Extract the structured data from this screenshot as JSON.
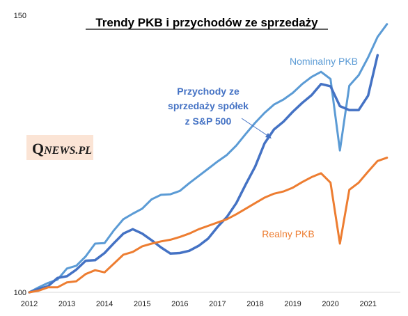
{
  "chart_data": {
    "type": "line",
    "title": "Trendy PKB i przychodów ze sprzedaży",
    "xlabel": "",
    "ylabel": "",
    "ylim": [
      100,
      150
    ],
    "xlim": [
      2012,
      2021.8
    ],
    "y_ticks": [
      100,
      150
    ],
    "x_ticks": [
      2012,
      2013,
      2014,
      2015,
      2016,
      2017,
      2018,
      2019,
      2020,
      2021
    ],
    "grid": false,
    "legend": "none",
    "series": [
      {
        "name": "Nominalny PKB",
        "color": "#5b9bd5",
        "x": [
          2012,
          2012.25,
          2012.5,
          2012.75,
          2013,
          2013.25,
          2013.5,
          2013.75,
          2014,
          2014.25,
          2014.5,
          2014.75,
          2015,
          2015.25,
          2015.5,
          2015.75,
          2016,
          2016.25,
          2016.5,
          2016.75,
          2017,
          2017.25,
          2017.5,
          2017.75,
          2018,
          2018.25,
          2018.5,
          2018.75,
          2019,
          2019.25,
          2019.5,
          2019.75,
          2020,
          2020.25,
          2020.5,
          2020.75,
          2021,
          2021.25,
          2021.5
        ],
        "values": [
          100,
          100.9,
          101.7,
          102.3,
          104.3,
          104.8,
          106.5,
          108.8,
          108.9,
          111.2,
          113.2,
          114.2,
          115.1,
          116.8,
          117.6,
          117.7,
          118.3,
          119.7,
          121.0,
          122.3,
          123.6,
          124.8,
          126.5,
          128.6,
          130.6,
          132.4,
          133.9,
          134.8,
          136.0,
          137.6,
          138.9,
          139.8,
          138.5,
          125.6,
          137.3,
          139.2,
          142.4,
          146.1,
          148.4
        ]
      },
      {
        "name": "Przychody ze sprzedaży spółek z S&P 500",
        "color": "#4472c4",
        "x": [
          2012,
          2012.25,
          2012.5,
          2012.75,
          2013,
          2013.25,
          2013.5,
          2013.75,
          2014,
          2014.25,
          2014.5,
          2014.75,
          2015,
          2015.25,
          2015.5,
          2015.75,
          2016,
          2016.25,
          2016.5,
          2016.75,
          2017,
          2017.25,
          2017.5,
          2017.75,
          2018,
          2018.25,
          2018.5,
          2018.75,
          2019,
          2019.25,
          2019.5,
          2019.75,
          2020,
          2020.25,
          2020.5,
          2020.75,
          2021,
          2021.25
        ],
        "values": [
          100,
          100.6,
          101.1,
          102.6,
          102.9,
          104.1,
          105.7,
          105.8,
          107.1,
          108.9,
          110.6,
          111.4,
          110.6,
          109.4,
          108.1,
          107.0,
          107.1,
          107.5,
          108.4,
          109.7,
          111.8,
          113.6,
          116.1,
          119.5,
          122.7,
          126.9,
          129.4,
          130.8,
          132.6,
          134.2,
          135.6,
          137.6,
          137.2,
          133.6,
          132.9,
          132.9,
          135.5,
          142.8
        ]
      },
      {
        "name": "Realny PKB",
        "color": "#ed7d31",
        "x": [
          2012,
          2012.25,
          2012.5,
          2012.75,
          2013,
          2013.25,
          2013.5,
          2013.75,
          2014,
          2014.25,
          2014.5,
          2014.75,
          2015,
          2015.25,
          2015.5,
          2015.75,
          2016,
          2016.25,
          2016.5,
          2016.75,
          2017,
          2017.25,
          2017.5,
          2017.75,
          2018,
          2018.25,
          2018.5,
          2018.75,
          2019,
          2019.25,
          2019.5,
          2019.75,
          2020,
          2020.25,
          2020.5,
          2020.75,
          2021,
          2021.25,
          2021.5
        ],
        "values": [
          100,
          100.3,
          100.9,
          100.9,
          101.8,
          102.0,
          103.3,
          104.0,
          103.6,
          105.2,
          106.8,
          107.3,
          108.3,
          108.8,
          109.2,
          109.5,
          110.0,
          110.6,
          111.4,
          112.0,
          112.6,
          113.2,
          114.1,
          115.1,
          116.1,
          117.1,
          117.8,
          118.2,
          118.9,
          119.9,
          120.8,
          121.5,
          119.8,
          108.8,
          118.5,
          119.8,
          121.8,
          123.7,
          124.3
        ]
      }
    ],
    "annotations": {
      "nominal": "Nominalny PKB",
      "revenue_lines": [
        "Przychody ze",
        "sprzedaży spółek",
        "z S&P 500"
      ],
      "real": "Realny PKB"
    }
  },
  "logo": {
    "first": "Q",
    "rest": "NEWS.PL"
  }
}
